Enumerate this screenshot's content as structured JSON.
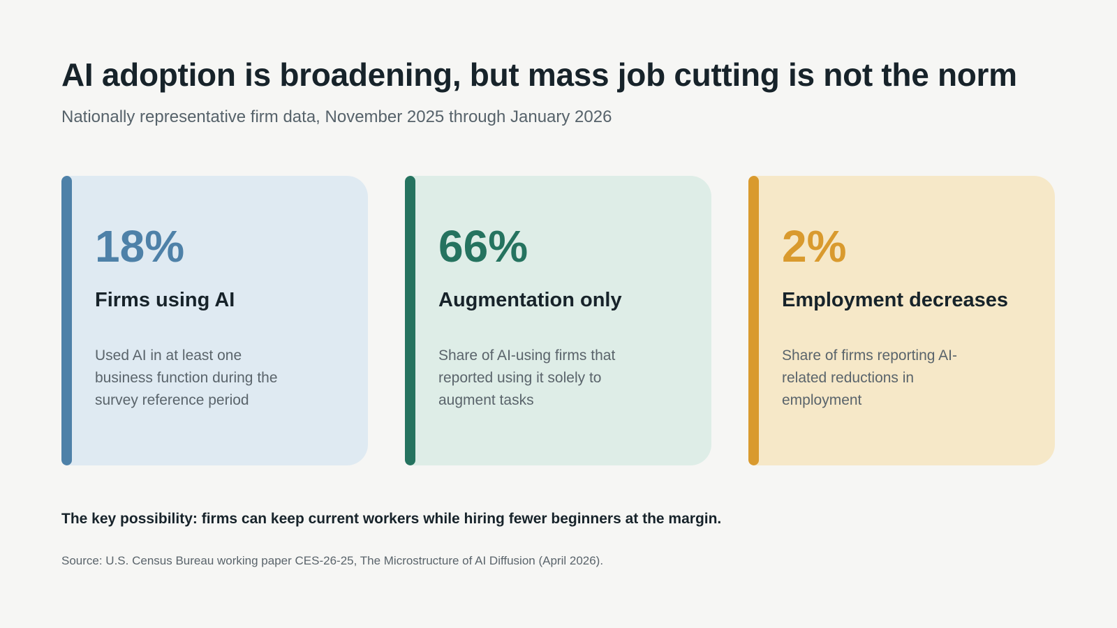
{
  "header": {
    "title": "AI adoption is broadening, but mass job cutting is not the norm",
    "subtitle": "Nationally representative firm data, November 2025 through January 2026"
  },
  "cards": [
    {
      "value": "18%",
      "label": "Firms using AI",
      "description": "Used AI in at least one business function during the survey reference period",
      "accent": "#4e81a8",
      "background": "#dfeaf2"
    },
    {
      "value": "66%",
      "label": "Augmentation only",
      "description": "Share of AI-using firms that reported using it solely to augment tasks",
      "accent": "#25735f",
      "background": "#deede7"
    },
    {
      "value": "2%",
      "label": "Employment decreases",
      "description": "Share of firms reporting AI-related reductions in employment",
      "accent": "#d99a2e",
      "background": "#f6e8c8"
    }
  ],
  "footer": {
    "takeaway": "The key possibility: firms can keep current workers while hiring fewer beginners at the margin.",
    "source": "Source: U.S. Census Bureau working paper CES-26-25, The Microstructure of AI Diffusion (April 2026)."
  }
}
